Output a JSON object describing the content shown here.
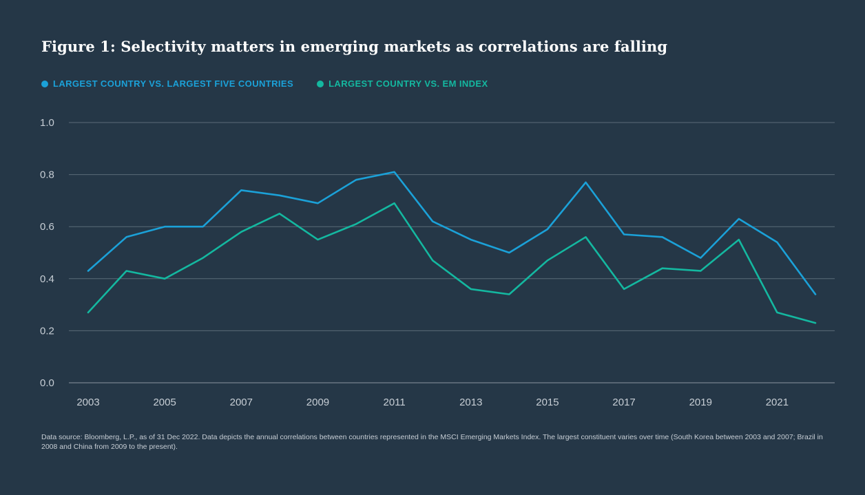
{
  "title": "Figure 1: Selectivity matters in emerging markets as correlations are falling",
  "legend": {
    "item1": "LARGEST COUNTRY VS. LARGEST FIVE COUNTRIES",
    "item2": "LARGEST COUNTRY VS. EM INDEX"
  },
  "colors": {
    "background": "#253747",
    "series1": "#1ba1d8",
    "series2": "#14b8a0",
    "grid": "#5b6b79",
    "axis": "#8a96a1",
    "text": "#c7ced5"
  },
  "source": "Data source: Bloomberg, L.P., as of 31 Dec 2022. Data depicts the annual correlations between countries represented in the MSCI Emerging Markets Index. The largest constituent varies over time (South Korea between 2003 and 2007; Brazil in 2008 and China from 2009 to the present).",
  "chart_data": {
    "type": "line",
    "title": "Figure 1: Selectivity matters in emerging markets as correlations are falling",
    "xlabel": "",
    "ylabel": "",
    "x": [
      2003,
      2004,
      2005,
      2006,
      2007,
      2008,
      2009,
      2010,
      2011,
      2012,
      2013,
      2014,
      2015,
      2016,
      2017,
      2018,
      2019,
      2020,
      2021,
      2022
    ],
    "x_tick_labels": [
      "2003",
      "2005",
      "2007",
      "2009",
      "2011",
      "2013",
      "2015",
      "2017",
      "2019",
      "2021"
    ],
    "x_ticks": [
      2003,
      2005,
      2007,
      2009,
      2011,
      2013,
      2015,
      2017,
      2019,
      2021
    ],
    "y_tick_labels": [
      "0.0",
      "0.2",
      "0.4",
      "0.6",
      "0.8",
      "1.0"
    ],
    "y_ticks": [
      0.0,
      0.2,
      0.4,
      0.6,
      0.8,
      1.0
    ],
    "ylim": [
      0,
      1.0
    ],
    "xlim": [
      2003,
      2022
    ],
    "grid": true,
    "legend_position": "top-left",
    "series": [
      {
        "name": "LARGEST COUNTRY VS. LARGEST FIVE COUNTRIES",
        "color": "#1ba1d8",
        "values": [
          0.43,
          0.56,
          0.6,
          0.6,
          0.74,
          0.72,
          0.69,
          0.78,
          0.81,
          0.62,
          0.55,
          0.5,
          0.59,
          0.77,
          0.57,
          0.56,
          0.48,
          0.63,
          0.54,
          0.34
        ]
      },
      {
        "name": "LARGEST COUNTRY VS. EM INDEX",
        "color": "#14b8a0",
        "values": [
          0.27,
          0.43,
          0.4,
          0.48,
          0.58,
          0.65,
          0.55,
          0.61,
          0.69,
          0.47,
          0.36,
          0.34,
          0.47,
          0.56,
          0.36,
          0.44,
          0.43,
          0.55,
          0.27,
          0.23
        ]
      }
    ]
  }
}
